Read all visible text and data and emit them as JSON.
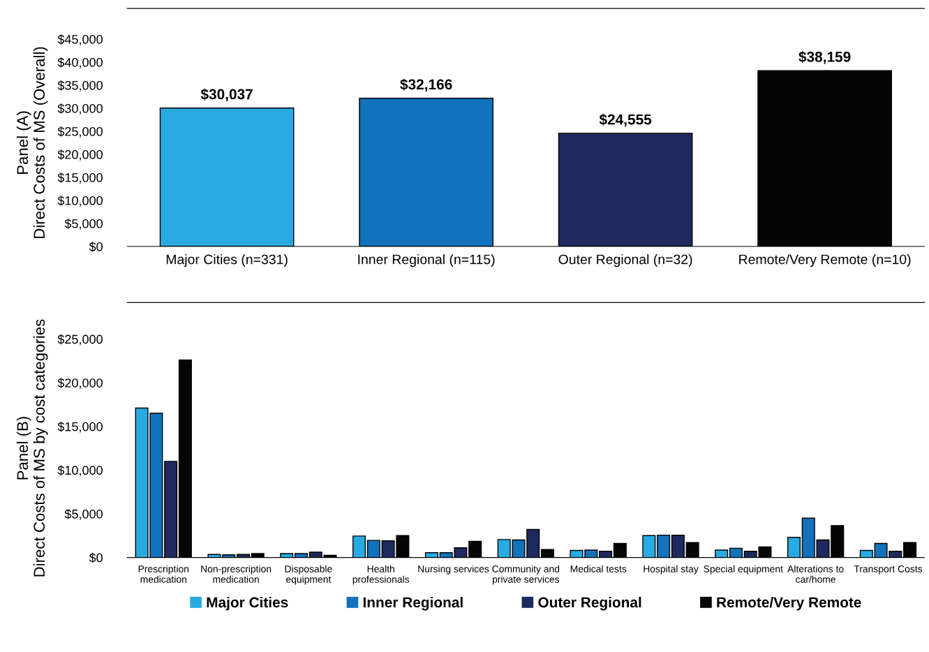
{
  "chart_data": [
    {
      "type": "bar",
      "ylabel": "Panel (A)\nDirect Costs of MS (Overall)",
      "categories": [
        "Major Cities (n=331)",
        "Inner Regional (n=115)",
        "Outer Regional (n=32)",
        "Remote/Very Remote (n=10)"
      ],
      "values": [
        30037,
        32166,
        24555,
        38159
      ],
      "colors": [
        "#29abe2",
        "#1272bb",
        "#1e2a5e",
        "#050505"
      ],
      "value_labels": [
        "$30,037",
        "$32,166",
        "$24,555",
        "$38,159"
      ],
      "ylim": [
        0,
        45000
      ],
      "yticks": [
        {
          "value": 0,
          "label": "$0"
        },
        {
          "value": 5000,
          "label": "$5,000"
        },
        {
          "value": 10000,
          "label": "$10,000"
        },
        {
          "value": 15000,
          "label": "$15,000"
        },
        {
          "value": 20000,
          "label": "$20,000"
        },
        {
          "value": 25000,
          "label": "$25,000"
        },
        {
          "value": 30000,
          "label": "$30,000"
        },
        {
          "value": 35000,
          "label": "$35,000"
        },
        {
          "value": 40000,
          "label": "$40,000"
        },
        {
          "value": 45000,
          "label": "$45,000"
        }
      ],
      "grid": false,
      "legend": false
    },
    {
      "type": "bar",
      "ylabel": "Panel (B)\nDirect Costs of MS by cost categories",
      "categories": [
        "Prescription\nmedication",
        "Non-prescription\nmedication",
        "Disposable\nequipment",
        "Health\nprofessionals",
        "Nursing services",
        "Community and\nprivate services",
        "Medical tests",
        "Hospital stay",
        "Special equipment",
        "Alterations to\ncar/home",
        "Transport Costs"
      ],
      "series": [
        {
          "name": "Major Cities",
          "color": "#29abe2",
          "values": [
            17100,
            350,
            450,
            2450,
            550,
            2050,
            800,
            2500,
            850,
            2300,
            800
          ]
        },
        {
          "name": "Inner Regional",
          "color": "#1272bb",
          "values": [
            16500,
            300,
            450,
            1950,
            550,
            2000,
            850,
            2550,
            1050,
            4500,
            1600
          ]
        },
        {
          "name": "Outer Regional",
          "color": "#1e2a5e",
          "values": [
            11000,
            350,
            600,
            1900,
            1100,
            3200,
            700,
            2550,
            700,
            2000,
            700
          ]
        },
        {
          "name": "Remote/Very Remote",
          "color": "#050505",
          "values": [
            22600,
            450,
            250,
            2500,
            1850,
            900,
            1600,
            1700,
            1200,
            3650,
            1700
          ]
        }
      ],
      "ylim": [
        0,
        25000
      ],
      "yticks": [
        {
          "value": 0,
          "label": "$0"
        },
        {
          "value": 5000,
          "label": "$5,000"
        },
        {
          "value": 10000,
          "label": "$10,000"
        },
        {
          "value": 15000,
          "label": "$15,000"
        },
        {
          "value": 20000,
          "label": "$20,000"
        },
        {
          "value": 25000,
          "label": "$25,000"
        }
      ],
      "grid": false,
      "legend": "bottom"
    }
  ]
}
